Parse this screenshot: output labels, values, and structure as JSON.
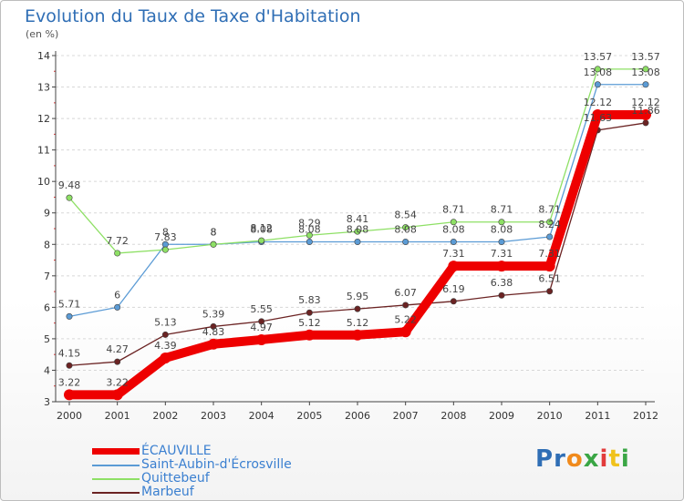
{
  "title": "Evolution du Taux de Taxe d'Habitation",
  "subtitle": "(en %)",
  "logo": "Proxiti",
  "chart_data": {
    "type": "line",
    "title": "Evolution du Taux de Taxe d'Habitation",
    "ylabel": "(en %)",
    "xlabel": "",
    "ylim": [
      3,
      14
    ],
    "yticks": [
      "3",
      "4",
      "5",
      "6",
      "7",
      "8",
      "9",
      "10",
      "11",
      "12",
      "13",
      "14"
    ],
    "categories": [
      "2000",
      "2001",
      "2002",
      "2003",
      "2004",
      "2005",
      "2006",
      "2007",
      "2008",
      "2009",
      "2010",
      "2011",
      "2012"
    ],
    "grid": "horizontal-dashed",
    "legend": "bottom-left",
    "series": [
      {
        "name": "ÉCAUVILLE",
        "color": "#ee0000",
        "values": [
          3.22,
          3.22,
          4.39,
          4.83,
          4.97,
          5.12,
          5.12,
          5.22,
          7.31,
          7.31,
          7.31,
          12.12,
          12.12
        ],
        "labels": [
          "3.22",
          "3.22",
          "4.39",
          "4.83",
          "4.97",
          "5.12",
          "5.12",
          "5.22",
          "7.31",
          "7.31",
          "7.31",
          "12.12",
          "12.12"
        ]
      },
      {
        "name": "Saint-Aubin-d'Écrosville",
        "color": "#5b9bd5",
        "values": [
          5.71,
          6,
          8,
          8,
          8.08,
          8.08,
          8.08,
          8.08,
          8.08,
          8.08,
          8.24,
          13.08,
          13.08
        ],
        "labels": [
          "5.71",
          "6",
          "8",
          "8",
          "8.08",
          "8.08",
          "8.08",
          "8.08",
          "8.08",
          "8.08",
          "8.24",
          "13.08",
          "13.08"
        ]
      },
      {
        "name": "Quittebeuf",
        "color": "#8ee065",
        "values": [
          9.48,
          7.72,
          7.83,
          8,
          8.12,
          8.29,
          8.41,
          8.54,
          8.71,
          8.71,
          8.71,
          13.57,
          13.57
        ],
        "labels": [
          "9.48",
          "7.72",
          "7.83",
          "8",
          "8.12",
          "8.29",
          "8.41",
          "8.54",
          "8.71",
          "8.71",
          "8.71",
          "13.57",
          "13.57"
        ]
      },
      {
        "name": "Marbeuf",
        "color": "#6b2323",
        "values": [
          4.15,
          4.27,
          5.13,
          5.39,
          5.55,
          5.83,
          5.95,
          6.07,
          6.19,
          6.38,
          6.51,
          11.63,
          11.86
        ],
        "labels": [
          "4.15",
          "4.27",
          "5.13",
          "5.39",
          "5.55",
          "5.83",
          "5.95",
          "6.07",
          "6.19",
          "6.38",
          "6.51",
          "11.63",
          "11.86"
        ]
      }
    ]
  }
}
